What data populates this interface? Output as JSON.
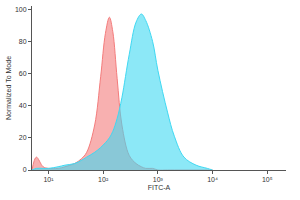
{
  "chart_data": {
    "type": "area",
    "xlabel": "FITC-A",
    "ylabel": "Normalized To Mode",
    "log": "x",
    "grid": false,
    "x": [
      5,
      6,
      8,
      10,
      15,
      20,
      30,
      40,
      50,
      70,
      90,
      110,
      130,
      150,
      180,
      220,
      300,
      400,
      500,
      600,
      800,
      1000,
      1500,
      2000,
      3000,
      5000,
      8000,
      10000
    ],
    "series": [
      {
        "color": "#f47c7c",
        "values": [
          0,
          8,
          2,
          1,
          1,
          2,
          4,
          7,
          11,
          28,
          58,
          85,
          95,
          86,
          57,
          28,
          9,
          4,
          2,
          1,
          1,
          0,
          0,
          0,
          0,
          0,
          0,
          0
        ]
      },
      {
        "color": "#3fd8f2",
        "values": [
          0,
          1,
          1,
          1,
          2,
          3,
          4,
          6,
          8,
          11,
          14,
          17,
          20,
          24,
          32,
          45,
          72,
          92,
          97,
          93,
          80,
          62,
          36,
          21,
          8,
          3,
          1,
          0
        ]
      }
    ],
    "xlim": [
      5,
      220000
    ],
    "xticks": [
      {
        "value": 10,
        "label": "10¹"
      },
      {
        "value": 100,
        "label": "10²"
      },
      {
        "value": 1000,
        "label": "10³"
      },
      {
        "value": 10000,
        "label": "10⁴"
      },
      {
        "value": 100000,
        "label": "10⁵"
      }
    ],
    "ylim": [
      0,
      102
    ],
    "yticks": [
      0,
      20,
      40,
      60,
      80,
      100
    ]
  }
}
